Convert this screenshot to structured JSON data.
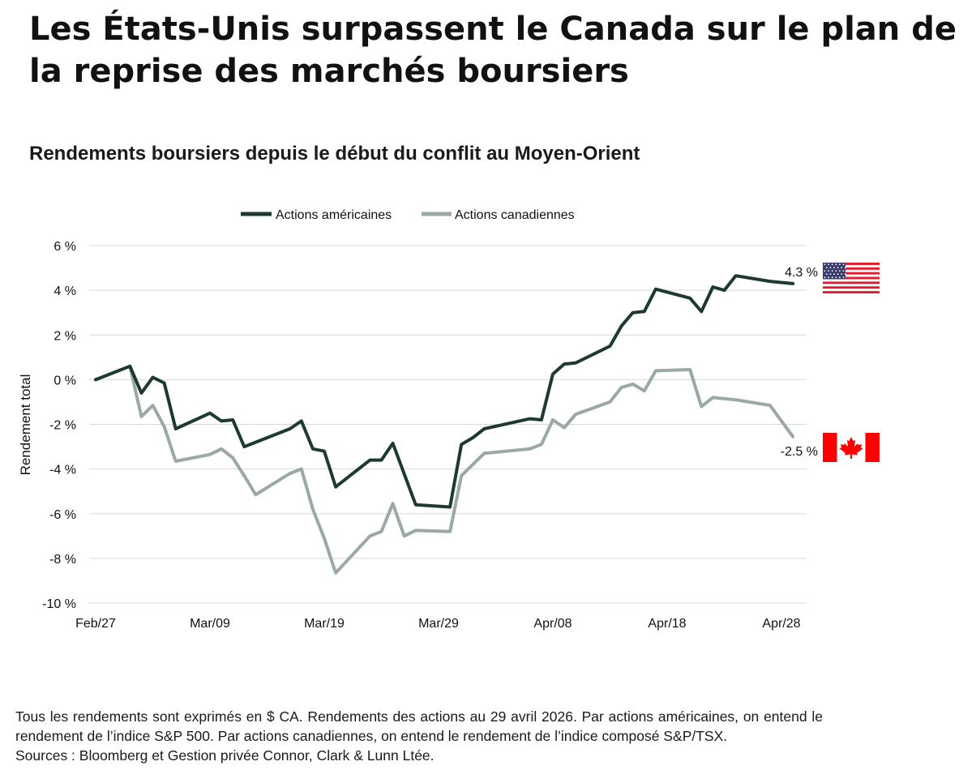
{
  "headline": "Les États-Unis surpassent le Canada sur le plan de la reprise des marchés boursiers",
  "chart_data": {
    "type": "line",
    "title": "Rendements boursiers depuis le début du conflit au Moyen-Orient",
    "xlabel": "",
    "ylabel": "Rendement total",
    "ylim": [
      -10,
      6
    ],
    "yticks": [
      6,
      4,
      2,
      0,
      -2,
      -4,
      -6,
      -8,
      -10
    ],
    "ytick_labels": [
      "6 %",
      "4 %",
      "2 %",
      "0 %",
      "-2 %",
      "-4 %",
      "-6 %",
      "-8 %",
      "-10 %"
    ],
    "x_tick_labels": [
      "Feb/27",
      "Mar/09",
      "Mar/19",
      "Mar/29",
      "Apr/08",
      "Apr/18",
      "Apr/28"
    ],
    "x_ticks": [
      0,
      10,
      20,
      30,
      40,
      50,
      60
    ],
    "xlim": [
      0,
      61
    ],
    "grid": true,
    "legend_position": "top-center",
    "series": [
      {
        "name": "Actions américaines",
        "color": "#1d3a2e",
        "points": [
          [
            0,
            0
          ],
          [
            3,
            0.6
          ],
          [
            4,
            -0.6
          ],
          [
            5,
            0.1
          ],
          [
            6,
            -0.15
          ],
          [
            7,
            -2.2
          ],
          [
            10,
            -1.5
          ],
          [
            11,
            -1.85
          ],
          [
            12,
            -1.8
          ],
          [
            13,
            -3.0
          ],
          [
            17,
            -2.2
          ],
          [
            18,
            -1.85
          ],
          [
            19,
            -3.1
          ],
          [
            20,
            -3.2
          ],
          [
            21,
            -4.8
          ],
          [
            24,
            -3.6
          ],
          [
            25,
            -3.6
          ],
          [
            26,
            -2.85
          ],
          [
            28,
            -5.6
          ],
          [
            31,
            -5.7
          ],
          [
            32,
            -2.9
          ],
          [
            33,
            -2.6
          ],
          [
            34,
            -2.2
          ],
          [
            38,
            -1.75
          ],
          [
            39,
            -1.8
          ],
          [
            40,
            0.25
          ],
          [
            41,
            0.7
          ],
          [
            42,
            0.75
          ],
          [
            45,
            1.5
          ],
          [
            46,
            2.4
          ],
          [
            47,
            3.0
          ],
          [
            48,
            3.05
          ],
          [
            49,
            4.05
          ],
          [
            52,
            3.65
          ],
          [
            53,
            3.05
          ],
          [
            54,
            4.15
          ],
          [
            55,
            4.0
          ],
          [
            56,
            4.65
          ],
          [
            59,
            4.4
          ],
          [
            60,
            4.35
          ],
          [
            61,
            4.3
          ]
        ],
        "end_label": "4.3 %"
      },
      {
        "name": "Actions canadiennes",
        "color": "#9aa9a3",
        "points": [
          [
            0,
            0
          ],
          [
            3,
            0.6
          ],
          [
            4,
            -1.65
          ],
          [
            5,
            -1.15
          ],
          [
            6,
            -2.1
          ],
          [
            7,
            -3.65
          ],
          [
            10,
            -3.35
          ],
          [
            11,
            -3.1
          ],
          [
            12,
            -3.5
          ],
          [
            13,
            -4.3
          ],
          [
            14,
            -5.15
          ],
          [
            17,
            -4.2
          ],
          [
            18,
            -4.0
          ],
          [
            19,
            -5.8
          ],
          [
            20,
            -7.1
          ],
          [
            21,
            -8.65
          ],
          [
            24,
            -7.0
          ],
          [
            25,
            -6.8
          ],
          [
            26,
            -5.55
          ],
          [
            27,
            -7.0
          ],
          [
            28,
            -6.75
          ],
          [
            31,
            -6.8
          ],
          [
            32,
            -4.3
          ],
          [
            33,
            -3.8
          ],
          [
            34,
            -3.3
          ],
          [
            38,
            -3.1
          ],
          [
            39,
            -2.9
          ],
          [
            40,
            -1.8
          ],
          [
            41,
            -2.15
          ],
          [
            42,
            -1.55
          ],
          [
            45,
            -1.0
          ],
          [
            46,
            -0.35
          ],
          [
            47,
            -0.2
          ],
          [
            48,
            -0.5
          ],
          [
            49,
            0.4
          ],
          [
            52,
            0.45
          ],
          [
            53,
            -1.2
          ],
          [
            54,
            -0.8
          ],
          [
            56,
            -0.9
          ],
          [
            59,
            -1.15
          ],
          [
            60,
            -1.85
          ],
          [
            61,
            -2.55
          ]
        ],
        "end_label": "-2.5 %"
      }
    ]
  },
  "footnote": {
    "line1": "Tous les rendements sont exprimés en $ CA. Rendements des actions au 29 avril 2026. Par actions américaines, on entend le rendement de l’indice S&P 500. Par actions canadiennes, on entend le rendement de l’indice composé S&P/TSX.",
    "line2": "Sources : Bloomberg et Gestion privée Connor, Clark & Lunn Ltée."
  },
  "flags": {
    "us": "us-flag-icon",
    "canada": "canada-flag-icon",
    "us_red": "#e31d2b",
    "us_blue": "#3c3b6e",
    "ca_red": "#ff0000"
  }
}
